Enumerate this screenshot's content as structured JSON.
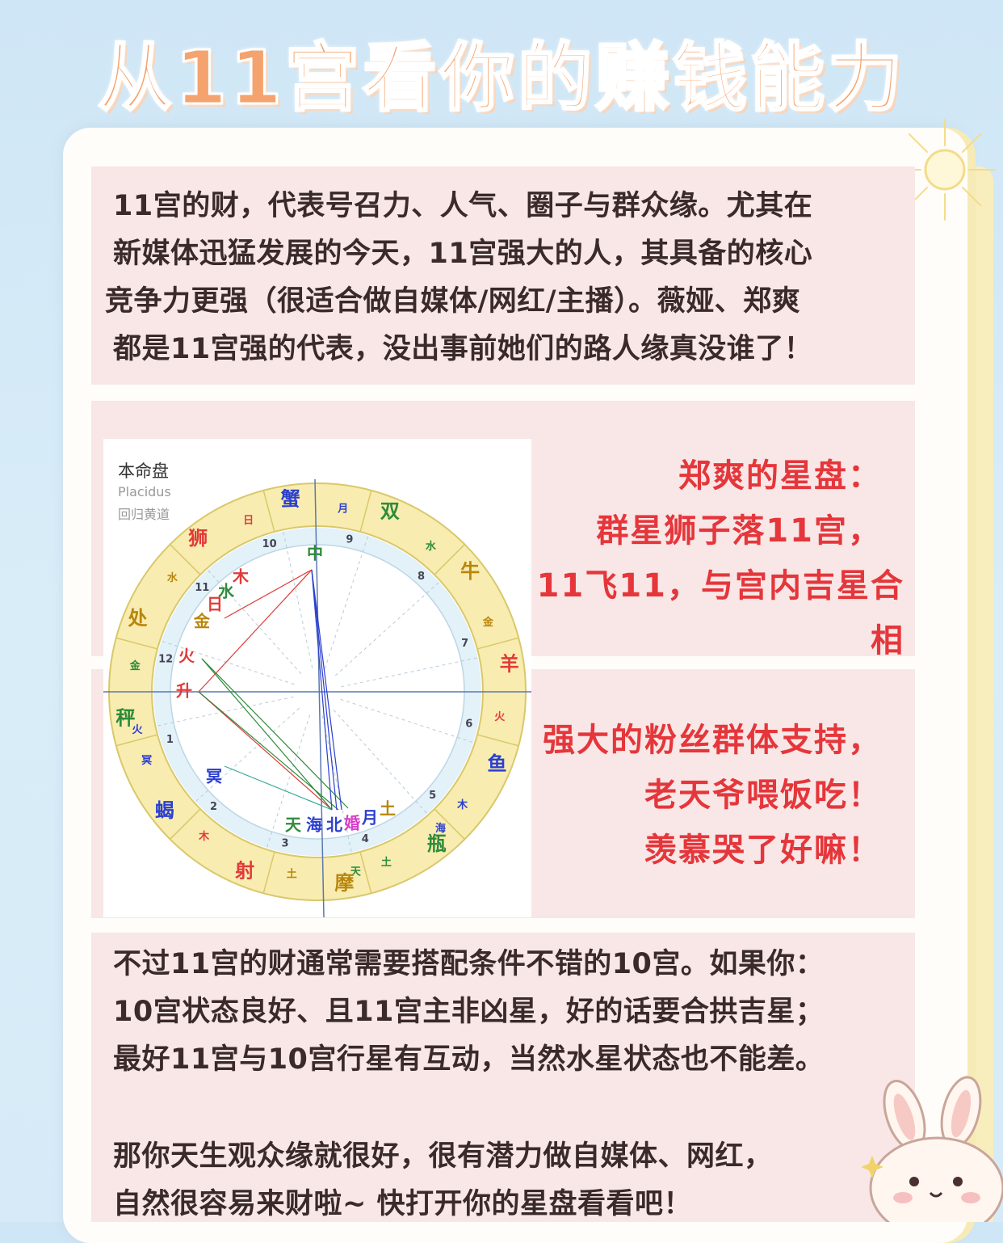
{
  "title": "从11宫看你的赚钱能力",
  "intro": {
    "lines": [
      "11宫的财，代表号召力、人气、圈子与群众缘。尤其在",
      "新媒体迅猛发展的今天，11宫强大的人，其具备的核心",
      "竞争力更强（很适合做自媒体/网红/主播）。薇娅、郑爽",
      "都是11宫强的代表，没出事前她们的路人缘真没谁了！"
    ]
  },
  "chart_panel": {
    "title": "本命盘",
    "system": "Placidus",
    "zodiac_type": "回归黄道",
    "signs": [
      "蟹",
      "双",
      "牛",
      "羊",
      "鱼",
      "瓶",
      "摩",
      "射",
      "蝎",
      "秤",
      "处",
      "狮"
    ],
    "sign_rulers": [
      "月",
      "水",
      "金",
      "火",
      "木",
      "土",
      "土",
      "木",
      "冥",
      "金",
      "水",
      "日"
    ],
    "second_rulers": [
      "",
      "",
      "",
      "",
      "海",
      "天",
      "",
      "",
      "火",
      "",
      "",
      ""
    ],
    "houses": [
      "1",
      "2",
      "3",
      "4",
      "5",
      "6",
      "7",
      "8",
      "9",
      "10",
      "11",
      "12"
    ],
    "planets": [
      "木",
      "水",
      "日",
      "金",
      "火",
      "升",
      "中",
      "冥",
      "天",
      "海",
      "北",
      "婚",
      "月",
      "土"
    ],
    "colors": {
      "sign_band": "#f8ecb0",
      "ring_stroke": "#d9c86a",
      "inner_band": "#e3f1f8",
      "red": "#e23a3a",
      "blue": "#2b3fd0",
      "green": "#2e8b3a",
      "gold": "#b8860b",
      "pink": "#d63cc8"
    }
  },
  "caption1": {
    "lines": [
      "郑爽的星盘：",
      "群星狮子落11宫，",
      "11飞11，与宫内吉星合相"
    ]
  },
  "caption2": {
    "lines": [
      "强大的粉丝群体支持，",
      "老天爷喂饭吃！",
      "羡慕哭了好嘛！"
    ]
  },
  "conditions": {
    "lines": [
      "不过11宫的财通常需要搭配条件不错的10宫。如果你：",
      "10宫状态良好、且11宫主非凶星，好的话要合拱吉星；",
      "最好11宫与10宫行星有互动，当然水星状态也不能差。"
    ]
  },
  "closing": {
    "lines": [
      "那你天生观众缘就很好，很有潜力做自媒体、网红，",
      "自然很容易来财啦~ 快打开你的星盘看看吧！"
    ]
  }
}
